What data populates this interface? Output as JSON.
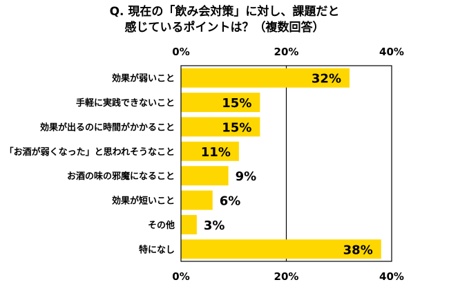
{
  "title_lines": [
    "Q. 現在の「飲み会対策」に対し、課題だと",
    "感じているポイントは？（複数回答）"
  ],
  "chart_data": {
    "type": "bar",
    "orientation": "horizontal",
    "categories": [
      "効果が弱いこと",
      "手軽に実践できないこと",
      "効果が出るのに時間がかかること",
      "「お酒が弱くなった」と思われそうなこと",
      "お酒の味の邪魔になること",
      "効果が短いこと",
      "その他",
      "特になし"
    ],
    "values": [
      32,
      15,
      15,
      11,
      9,
      6,
      3,
      38
    ],
    "value_labels": [
      "32%",
      "15%",
      "15%",
      "11%",
      "9%",
      "6%",
      "3%",
      "38%"
    ],
    "xlim": [
      0,
      40
    ],
    "tick_labels": [
      "0%",
      "20%",
      "40%"
    ],
    "tick_values": [
      0,
      20,
      40
    ],
    "grid": true,
    "bar_color": "#FFD700"
  }
}
